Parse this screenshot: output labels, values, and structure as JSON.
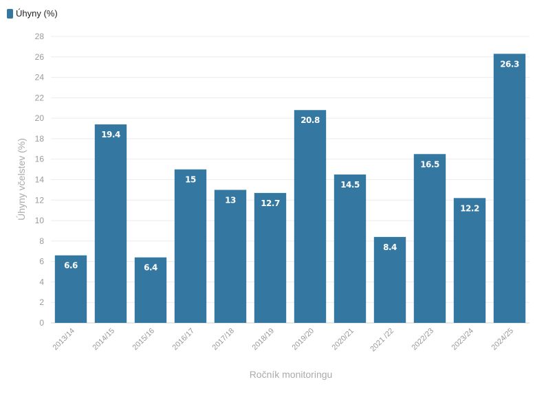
{
  "legend": {
    "label": "Úhyny (%)",
    "color": "#3478a2"
  },
  "chart_data": {
    "type": "bar",
    "categories": [
      "2013/14",
      "2014/15",
      "2015/16",
      "2016/17",
      "2017/18",
      "2018/19",
      "2019/20",
      "2020/21",
      "2021 /22",
      "2022/23",
      "2023/24",
      "2024/25"
    ],
    "series": [
      {
        "name": "Úhyny (%)",
        "values": [
          6.6,
          19.4,
          6.4,
          15,
          13,
          12.7,
          20.8,
          14.5,
          8.4,
          16.5,
          12.2,
          26.3
        ],
        "color": "#3478a2"
      }
    ],
    "value_labels": [
      "6.6",
      "19.4",
      "6.4",
      "15",
      "13",
      "12.7",
      "20.8",
      "14.5",
      "8.4",
      "16.5",
      "12.2",
      "26.3"
    ],
    "xlabel": "Ročník monitoringu",
    "ylabel": "Úhyny včelstev (%)",
    "ylim": [
      0,
      28
    ],
    "yticks": [
      0,
      2,
      4,
      6,
      8,
      10,
      12,
      14,
      16,
      18,
      20,
      22,
      24,
      26,
      28
    ],
    "grid": true,
    "legend_position": "top-left"
  }
}
